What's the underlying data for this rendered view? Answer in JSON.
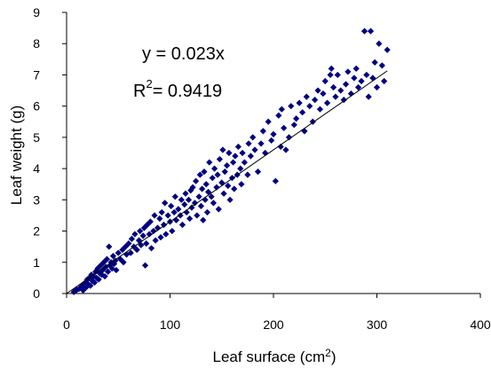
{
  "chart_data": {
    "type": "scatter",
    "xlabel": "Leaf surface (cm",
    "xlabel_sup": "2",
    "xlabel_close": ")",
    "ylabel": "Leaf weight (g)",
    "xlim": [
      0,
      400
    ],
    "ylim": [
      0,
      9
    ],
    "xticks": [
      "0",
      "100",
      "200",
      "300",
      "400"
    ],
    "yticks": [
      "0",
      "1",
      "2",
      "3",
      "4",
      "5",
      "6",
      "7",
      "8",
      "9"
    ],
    "grid": false,
    "marker": "diamond",
    "marker_color": "#000080",
    "trendline": {
      "equation": "y = 0.023x",
      "slope": 0.023,
      "r2_prefix": "R",
      "r2_sup": "2",
      "r2_value": "= 0.9419",
      "color": "#000000"
    },
    "points": [
      [
        7,
        0.05
      ],
      [
        9,
        0.1
      ],
      [
        10,
        0.12
      ],
      [
        12,
        0.15
      ],
      [
        14,
        0.2
      ],
      [
        15,
        0.25
      ],
      [
        16,
        0.1
      ],
      [
        17,
        0.3
      ],
      [
        18,
        0.35
      ],
      [
        19,
        0.2
      ],
      [
        20,
        0.45
      ],
      [
        21,
        0.3
      ],
      [
        22,
        0.5
      ],
      [
        23,
        0.25
      ],
      [
        24,
        0.6
      ],
      [
        25,
        0.4
      ],
      [
        26,
        0.55
      ],
      [
        27,
        0.35
      ],
      [
        28,
        0.7
      ],
      [
        29,
        0.5
      ],
      [
        30,
        0.8
      ],
      [
        31,
        0.45
      ],
      [
        32,
        0.65
      ],
      [
        33,
        0.9
      ],
      [
        34,
        0.6
      ],
      [
        35,
        0.75
      ],
      [
        36,
        1.0
      ],
      [
        37,
        0.55
      ],
      [
        38,
        0.85
      ],
      [
        39,
        1.1
      ],
      [
        40,
        0.7
      ],
      [
        41,
        1.5
      ],
      [
        42,
        0.9
      ],
      [
        43,
        1.0
      ],
      [
        44,
        0.8
      ],
      [
        45,
        1.2
      ],
      [
        46,
        0.95
      ],
      [
        47,
        1.05
      ],
      [
        48,
        0.75
      ],
      [
        50,
        1.3
      ],
      [
        52,
        1.1
      ],
      [
        54,
        1.4
      ],
      [
        55,
        1.0
      ],
      [
        57,
        1.5
      ],
      [
        58,
        1.25
      ],
      [
        60,
        1.6
      ],
      [
        62,
        1.3
      ],
      [
        63,
        1.75
      ],
      [
        65,
        1.5
      ],
      [
        66,
        1.9
      ],
      [
        68,
        1.4
      ],
      [
        70,
        1.7
      ],
      [
        71,
        2.0
      ],
      [
        72,
        1.55
      ],
      [
        74,
        1.85
      ],
      [
        75,
        2.1
      ],
      [
        76,
        0.9
      ],
      [
        77,
        1.6
      ],
      [
        78,
        2.2
      ],
      [
        80,
        1.9
      ],
      [
        81,
        2.3
      ],
      [
        82,
        1.45
      ],
      [
        84,
        2.0
      ],
      [
        85,
        2.5
      ],
      [
        86,
        1.7
      ],
      [
        88,
        2.1
      ],
      [
        90,
        2.4
      ],
      [
        91,
        1.8
      ],
      [
        92,
        2.6
      ],
      [
        94,
        2.2
      ],
      [
        95,
        2.9
      ],
      [
        96,
        1.9
      ],
      [
        98,
        2.5
      ],
      [
        100,
        2.3
      ],
      [
        101,
        2.8
      ],
      [
        102,
        2.0
      ],
      [
        104,
        2.6
      ],
      [
        105,
        3.1
      ],
      [
        106,
        2.35
      ],
      [
        108,
        2.7
      ],
      [
        110,
        2.5
      ],
      [
        111,
        3.0
      ],
      [
        112,
        2.2
      ],
      [
        114,
        2.85
      ],
      [
        115,
        3.2
      ],
      [
        116,
        2.6
      ],
      [
        118,
        3.0
      ],
      [
        119,
        2.4
      ],
      [
        120,
        3.3
      ],
      [
        121,
        2.75
      ],
      [
        122,
        3.4
      ],
      [
        124,
        2.9
      ],
      [
        125,
        3.6
      ],
      [
        126,
        2.5
      ],
      [
        128,
        3.1
      ],
      [
        129,
        3.8
      ],
      [
        130,
        2.8
      ],
      [
        131,
        3.35
      ],
      [
        132,
        2.35
      ],
      [
        133,
        3.9
      ],
      [
        134,
        3.0
      ],
      [
        135,
        3.5
      ],
      [
        136,
        2.6
      ],
      [
        137,
        3.25
      ],
      [
        138,
        4.2
      ],
      [
        140,
        3.1
      ],
      [
        141,
        3.7
      ],
      [
        142,
        2.9
      ],
      [
        143,
        4.0
      ],
      [
        145,
        3.4
      ],
      [
        146,
        3.8
      ],
      [
        147,
        2.7
      ],
      [
        148,
        4.3
      ],
      [
        150,
        3.55
      ],
      [
        151,
        4.6
      ],
      [
        152,
        3.2
      ],
      [
        153,
        3.9
      ],
      [
        155,
        4.1
      ],
      [
        156,
        3.45
      ],
      [
        157,
        4.5
      ],
      [
        158,
        3.0
      ],
      [
        160,
        3.7
      ],
      [
        161,
        4.2
      ],
      [
        162,
        3.35
      ],
      [
        163,
        4.4
      ],
      [
        165,
        3.8
      ],
      [
        166,
        4.7
      ],
      [
        168,
        4.0
      ],
      [
        169,
        3.5
      ],
      [
        170,
        4.5
      ],
      [
        172,
        4.2
      ],
      [
        175,
        3.8
      ],
      [
        176,
        4.8
      ],
      [
        178,
        4.4
      ],
      [
        180,
        5.0
      ],
      [
        182,
        4.6
      ],
      [
        185,
        3.9
      ],
      [
        188,
        4.8
      ],
      [
        190,
        5.2
      ],
      [
        192,
        4.5
      ],
      [
        195,
        5.5
      ],
      [
        198,
        4.9
      ],
      [
        200,
        5.1
      ],
      [
        202,
        3.6
      ],
      [
        205,
        5.7
      ],
      [
        207,
        4.7
      ],
      [
        208,
        5.9
      ],
      [
        210,
        5.3
      ],
      [
        212,
        4.6
      ],
      [
        215,
        5.0
      ],
      [
        217,
        6.0
      ],
      [
        220,
        5.4
      ],
      [
        222,
        5.6
      ],
      [
        225,
        6.1
      ],
      [
        228,
        5.8
      ],
      [
        230,
        5.2
      ],
      [
        232,
        6.3
      ],
      [
        235,
        6.0
      ],
      [
        238,
        5.5
      ],
      [
        240,
        6.2
      ],
      [
        243,
        6.5
      ],
      [
        245,
        5.9
      ],
      [
        248,
        6.4
      ],
      [
        250,
        6.8
      ],
      [
        252,
        6.1
      ],
      [
        255,
        7.0
      ],
      [
        256,
        7.2
      ],
      [
        258,
        6.6
      ],
      [
        260,
        6.3
      ],
      [
        262,
        7.0
      ],
      [
        265,
        6.5
      ],
      [
        268,
        6.2
      ],
      [
        270,
        6.7
      ],
      [
        272,
        7.1
      ],
      [
        275,
        6.4
      ],
      [
        278,
        6.9
      ],
      [
        280,
        7.2
      ],
      [
        282,
        6.6
      ],
      [
        285,
        6.8
      ],
      [
        288,
        8.4
      ],
      [
        290,
        7.0
      ],
      [
        292,
        6.3
      ],
      [
        294,
        8.4
      ],
      [
        296,
        6.9
      ],
      [
        298,
        7.4
      ],
      [
        300,
        6.6
      ],
      [
        302,
        8.0
      ],
      [
        305,
        7.3
      ],
      [
        307,
        6.8
      ],
      [
        310,
        7.8
      ]
    ]
  }
}
